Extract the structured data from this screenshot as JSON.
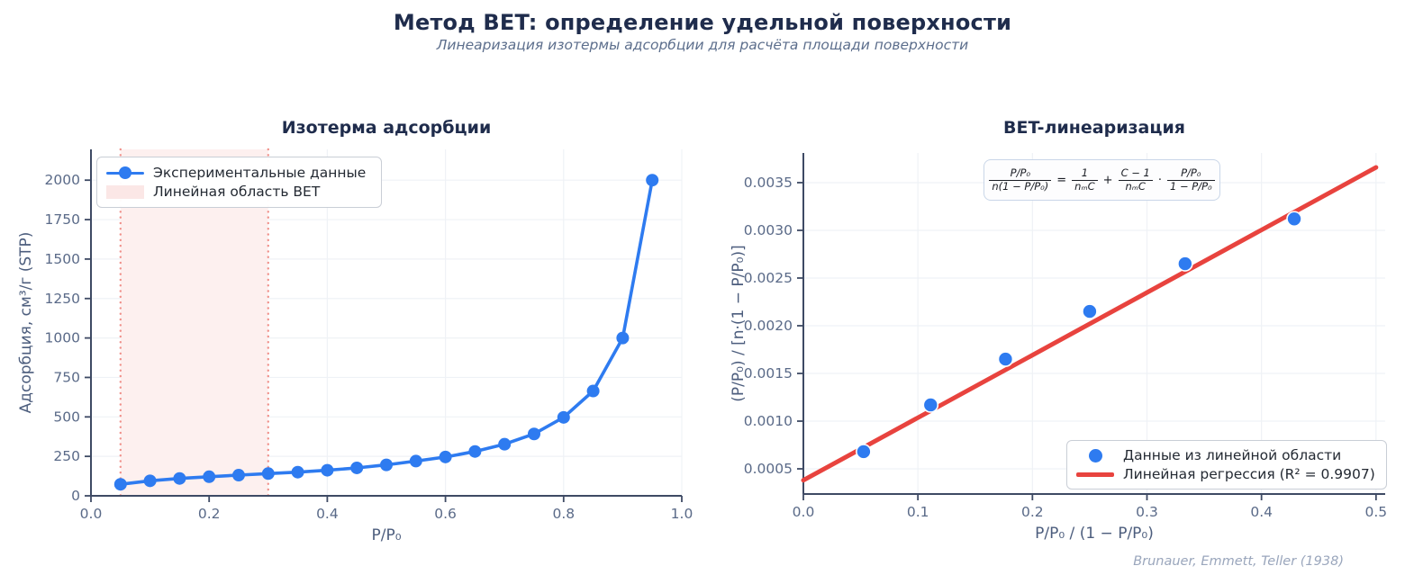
{
  "header": {
    "title": "Метод BET: определение удельной поверхности",
    "subtitle": "Линеаризация изотермы адсорбции для расчёта площади поверхности"
  },
  "footer": {
    "citation": "Brunauer, Emmett, Teller (1938)"
  },
  "colors": {
    "data_blue": "#2e7bf0",
    "regression_red": "#e8433e",
    "bet_region_fill": "#fdf0ef",
    "bet_region_border": "#f0918b",
    "title_navy": "#1f2c4c",
    "tick_slate": "#5a6a88",
    "axis_label": "#4c5d7d",
    "spine": "#3e4a64",
    "grid": "#eff2f6"
  },
  "chart_data": [
    {
      "type": "line",
      "title": "Изотерма адсорбции",
      "xlabel": "P/P₀",
      "ylabel": "Адсорбция, см³/г (STP)",
      "xlim": [
        0,
        1.0
      ],
      "ylim": [
        0,
        2195
      ],
      "xticks": [
        0,
        0.2,
        0.4,
        0.6,
        0.8,
        1.0
      ],
      "xticklabels": [
        "0.0",
        "0.2",
        "0.4",
        "0.6",
        "0.8",
        "1.0"
      ],
      "yticks": [
        0,
        250,
        500,
        750,
        1000,
        1250,
        1500,
        1750,
        2000
      ],
      "yticklabels": [
        "0",
        "250",
        "500",
        "750",
        "1000",
        "1250",
        "1500",
        "1750",
        "2000"
      ],
      "grid": true,
      "legend_position": "upper left",
      "legend": [
        "Экспериментальные данные",
        "Линейная область BET"
      ],
      "series": [
        {
          "name": "Экспериментальные данные",
          "x": [
            0.05,
            0.1,
            0.15,
            0.2,
            0.25,
            0.3,
            0.35,
            0.4,
            0.45,
            0.5,
            0.55,
            0.6,
            0.65,
            0.7,
            0.75,
            0.8,
            0.85,
            0.9,
            0.95
          ],
          "y": [
            73,
            95,
            110,
            121,
            131,
            141,
            150,
            162,
            177,
            196,
            220,
            246,
            281,
            327,
            392,
            497,
            664,
            1000,
            2000
          ]
        }
      ],
      "bet_region": {
        "label": "Линейная область BET",
        "x_start": 0.05,
        "x_end": 0.3
      }
    },
    {
      "type": "scatter",
      "title": "BET-линеаризация",
      "xlabel": "P/P₀ / (1 − P/P₀)",
      "ylabel": "(P/P₀) / [n·(1 − P/P₀)]",
      "xlim": [
        0,
        0.508
      ],
      "ylim": [
        0.000236,
        0.003811
      ],
      "xticks": [
        0,
        0.1,
        0.2,
        0.3,
        0.4,
        0.5
      ],
      "xticklabels": [
        "0.0",
        "0.1",
        "0.2",
        "0.3",
        "0.4",
        "0.5"
      ],
      "yticks": [
        0.0005,
        0.001,
        0.0015,
        0.002,
        0.0025,
        0.003,
        0.0035
      ],
      "yticklabels": [
        "0.0005",
        "0.0010",
        "0.0015",
        "0.0020",
        "0.0025",
        "0.0030",
        "0.0035"
      ],
      "grid": true,
      "legend_position": "lower right",
      "legend": [
        "Данные из линейной области",
        "Линейная регрессия (R² = 0.9907)"
      ],
      "points": {
        "name": "Данные из линейной области",
        "x": [
          0.0526,
          0.1111,
          0.1765,
          0.25,
          0.3333,
          0.4286
        ],
        "y": [
          0.00068,
          0.00117,
          0.00165,
          0.00215,
          0.00265,
          0.00312
        ]
      },
      "regression": {
        "name": "Линейная регрессия",
        "r_squared": 0.9907,
        "x": [
          0,
          0.5
        ],
        "y": [
          0.00038,
          0.00366
        ]
      },
      "formula": {
        "f1_num": "P/P₀",
        "f1_den": "n(1 − P/P₀)",
        "equals": "=",
        "f2_num": "1",
        "f2_den": "nₘC",
        "plus": "+",
        "f3_num": "C − 1",
        "f3_den": "nₘC",
        "dot": "·",
        "f4_num": "P/P₀",
        "f4_den": "1 − P/P₀"
      }
    }
  ]
}
